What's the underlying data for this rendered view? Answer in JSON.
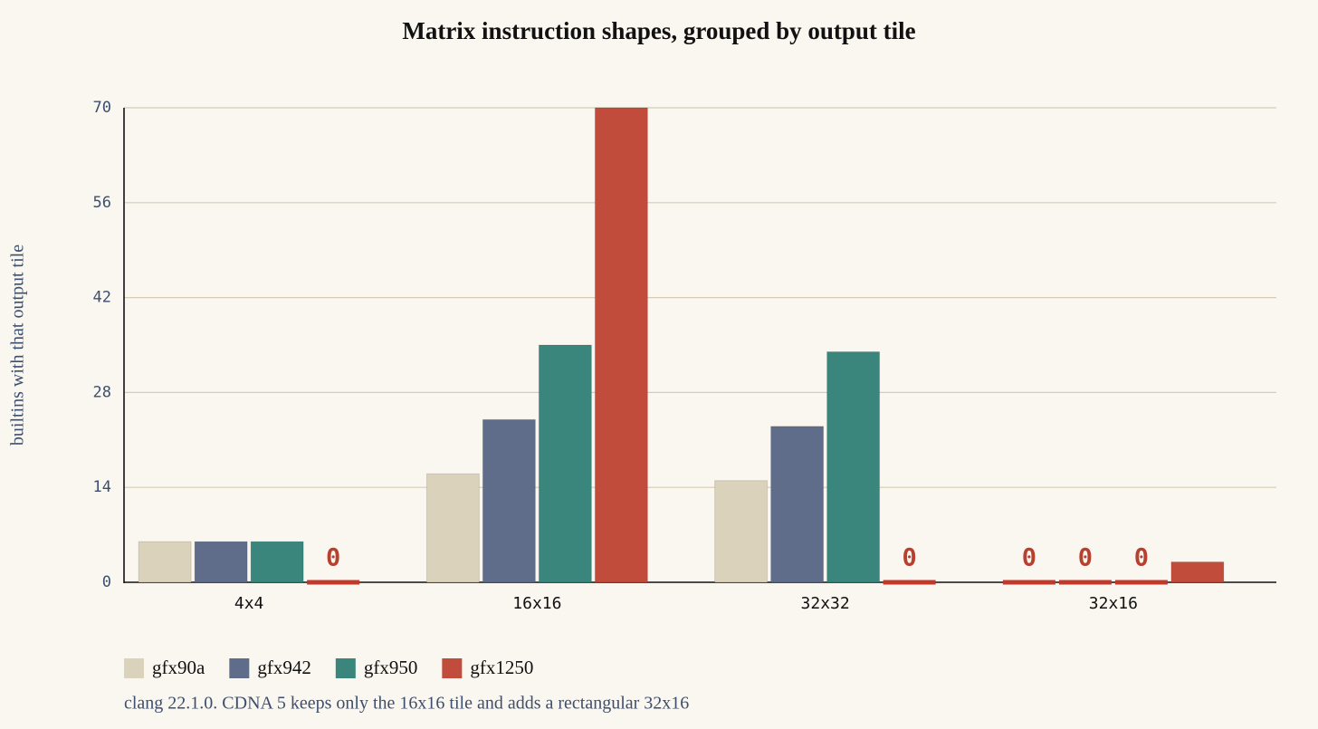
{
  "chart_data": {
    "type": "bar",
    "title": "Matrix instruction shapes, grouped by output tile",
    "y_label": "builtins with that output tile",
    "caption": "clang 22.1.0. CDNA 5 keeps only the 16x16 tile and adds a rectangular 32x16",
    "categories": [
      "4x4",
      "16x16",
      "32x32",
      "32x16"
    ],
    "series": [
      {
        "name": "gfx90a",
        "color": "#dbd2bc",
        "values": [
          6,
          16,
          15,
          0
        ]
      },
      {
        "name": "gfx942",
        "color": "#5f6d8a",
        "values": [
          6,
          24,
          23,
          0
        ]
      },
      {
        "name": "gfx950",
        "color": "#3a857c",
        "values": [
          6,
          35,
          34,
          0
        ]
      },
      {
        "name": "gfx1250",
        "color": "#c24c3c",
        "values": [
          0,
          70,
          0,
          3
        ]
      }
    ],
    "ylim": [
      0,
      70
    ],
    "yticks": [
      0,
      14,
      28,
      42,
      56,
      70
    ],
    "grid": true,
    "legend": "bottom"
  }
}
